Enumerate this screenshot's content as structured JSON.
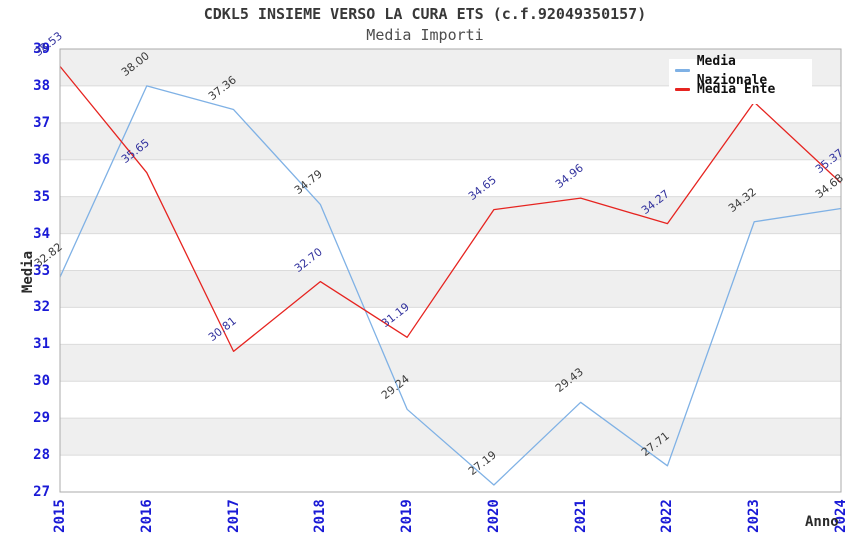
{
  "title": "CDKL5 INSIEME VERSO LA CURA ETS (c.f.92049350157)",
  "subtitle": "Media Importi",
  "axes": {
    "x_label": "Anno",
    "y_label": "Media"
  },
  "legend": {
    "position": "top-right",
    "items": [
      {
        "label": "Media Nazionale",
        "color": "#7FB1E5"
      },
      {
        "label": "Media Ente",
        "color": "#E62420"
      }
    ]
  },
  "colors": {
    "tick_label": "#1A1AD6",
    "band_gray": "#EFEFEF",
    "gridline": "#DBDBDB",
    "plot_border": "#ABABAB"
  },
  "chart_data": {
    "type": "line",
    "x": [
      "2015",
      "2016",
      "2017",
      "2018",
      "2019",
      "2020",
      "2021",
      "2022",
      "2023",
      "2024"
    ],
    "series": [
      {
        "name": "Media Nazionale",
        "color": "#7FB1E5",
        "label_color": "#3C3C3C",
        "values": [
          32.82,
          38.0,
          37.36,
          34.79,
          29.24,
          27.19,
          29.43,
          27.71,
          34.32,
          34.68
        ],
        "hidden_label_indices": []
      },
      {
        "name": "Media Ente",
        "color": "#E62420",
        "label_color": "#33339E",
        "values": [
          38.53,
          35.65,
          30.81,
          32.7,
          31.19,
          34.65,
          34.96,
          34.27,
          37.56,
          35.37
        ],
        "hidden_label_indices": [
          8
        ],
        "note": "2023 value label is hidden behind the legend box; value estimated from line position"
      }
    ],
    "ylim": [
      27,
      39
    ],
    "yticks": [
      27,
      28,
      29,
      30,
      31,
      32,
      33,
      34,
      35,
      36,
      37,
      38,
      39
    ],
    "grid": true,
    "alternating_bands": true,
    "legend_position": "top-right"
  }
}
